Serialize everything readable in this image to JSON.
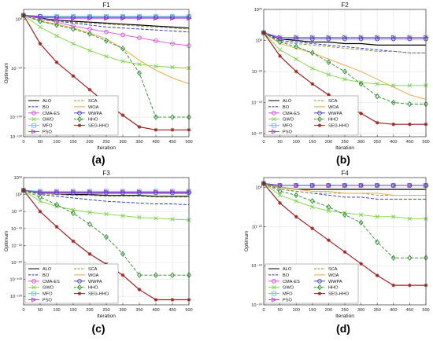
{
  "figure": {
    "captions": [
      "(a)",
      "(b)",
      "(c)",
      "(d)"
    ]
  },
  "series_styles": [
    {
      "name": "ALO",
      "color": "#000000",
      "dash": "solid",
      "marker": "none"
    },
    {
      "name": "BO",
      "color": "#1f2fbf",
      "dash": "dash",
      "marker": "none"
    },
    {
      "name": "CMA-ES",
      "color": "#d84fd8",
      "dash": "solid",
      "marker": "circle"
    },
    {
      "name": "GWO",
      "color": "#7fd34a",
      "dash": "solid",
      "marker": "x"
    },
    {
      "name": "MFO",
      "color": "#5fc8e8",
      "dash": "solid",
      "marker": "square"
    },
    {
      "name": "PSO",
      "color": "#b23fe0",
      "dash": "solid",
      "marker": "triangle"
    },
    {
      "name": "SCA",
      "color": "#8c8c3c",
      "dash": "dash",
      "marker": "none"
    },
    {
      "name": "WOA",
      "color": "#e6a53a",
      "dash": "solid",
      "marker": "none"
    },
    {
      "name": "WWPA",
      "color": "#4a4ab8",
      "dash": "solid",
      "marker": "circle"
    },
    {
      "name": "HHO",
      "color": "#2a8c2a",
      "dash": "dash",
      "marker": "diamond"
    },
    {
      "name": "SEG-HHO",
      "color": "#a02020",
      "dash": "solid",
      "marker": "star"
    }
  ],
  "chart_data": [
    {
      "type": "line",
      "title": "F1",
      "xlabel": "Iteration",
      "ylabel": "Optimum",
      "yscale": "log",
      "xlim": [
        0,
        500
      ],
      "ylim_exp": [
        -120,
        10
      ],
      "xticks": [
        0,
        50,
        100,
        150,
        200,
        250,
        300,
        350,
        400,
        450,
        500
      ],
      "ytick_labels": [
        "10⁰",
        "10⁻⁵⁰",
        "10⁻¹⁰⁰",
        "10⁻¹²⁰"
      ],
      "ytick_exps": [
        0,
        -50,
        -100,
        -120
      ],
      "grid": true,
      "legend": "bottom-left",
      "x": [
        0,
        50,
        100,
        150,
        200,
        250,
        300,
        350,
        400,
        450,
        500
      ],
      "series": [
        {
          "name": "ALO",
          "log10_values": [
            4,
            1,
            -1,
            -2,
            -3,
            -4,
            -5,
            -6,
            -7,
            -8,
            -9
          ]
        },
        {
          "name": "BO",
          "log10_values": [
            4,
            2,
            -2,
            -4,
            -6,
            -8,
            -9,
            -10,
            -11,
            -12,
            -13
          ]
        },
        {
          "name": "CMA-ES",
          "log10_values": [
            4,
            1,
            -3,
            -7,
            -10,
            -13,
            -16,
            -19,
            -22,
            -25,
            -27
          ]
        },
        {
          "name": "GWO",
          "log10_values": [
            4,
            -8,
            -17,
            -25,
            -32,
            -38,
            -43,
            -46,
            -48,
            -49,
            -50
          ]
        },
        {
          "name": "MFO",
          "log10_values": [
            4,
            3,
            3,
            3,
            3,
            3,
            3,
            3,
            3,
            3,
            3
          ]
        },
        {
          "name": "PSO",
          "log10_values": [
            4,
            2,
            1,
            1,
            1,
            1,
            1,
            1,
            1,
            1,
            1
          ]
        },
        {
          "name": "SCA",
          "log10_values": [
            4,
            -1,
            -2,
            -3,
            -4,
            -5,
            -6,
            -7,
            -8,
            -9,
            -10
          ]
        },
        {
          "name": "WOA",
          "log10_values": [
            4,
            -2,
            -5,
            -9,
            -14,
            -20,
            -30,
            -42,
            -52,
            -60,
            -66
          ]
        },
        {
          "name": "WWPA",
          "log10_values": [
            4,
            3,
            2,
            2,
            2,
            2,
            2,
            2,
            2,
            2,
            2
          ]
        },
        {
          "name": "HHO",
          "log10_values": [
            4,
            -2,
            -6,
            -10,
            -15,
            -22,
            -30,
            -55,
            -100,
            -100,
            -100
          ]
        },
        {
          "name": "SEG-HHO",
          "log10_values": [
            4,
            -25,
            -44,
            -58,
            -72,
            -86,
            -98,
            -110,
            -113,
            -113,
            -113
          ]
        }
      ]
    },
    {
      "type": "line",
      "title": "F2",
      "xlabel": "Iteration",
      "ylabel": "",
      "yscale": "log",
      "xlim": [
        0,
        500
      ],
      "ylim_exp": [
        -62,
        20
      ],
      "xticks": [
        0,
        50,
        100,
        150,
        200,
        250,
        300,
        350,
        400,
        450,
        500
      ],
      "ytick_labels": [
        "10²⁰",
        "10⁰",
        "10⁻²⁰",
        "10⁻⁴⁰",
        "10⁻⁶⁰"
      ],
      "ytick_exps": [
        20,
        0,
        -20,
        -40,
        -60
      ],
      "grid": true,
      "legend": "bottom-left",
      "x": [
        0,
        50,
        100,
        150,
        200,
        250,
        300,
        350,
        400,
        450,
        500
      ],
      "series": [
        {
          "name": "ALO",
          "log10_values": [
            5,
            1,
            0,
            -1,
            -1,
            -2,
            -2,
            -3,
            -3,
            -3,
            -3
          ]
        },
        {
          "name": "BO",
          "log10_values": [
            5,
            0,
            -1,
            -2,
            -3,
            -4,
            -5,
            -6,
            -7,
            -8,
            -8
          ]
        },
        {
          "name": "CMA-ES",
          "log10_values": [
            5,
            1,
            1,
            1,
            1,
            1,
            1,
            1,
            1,
            1,
            1
          ]
        },
        {
          "name": "GWO",
          "log10_values": [
            5,
            -6,
            -12,
            -18,
            -22,
            -25,
            -27,
            -28,
            -29,
            -29,
            -29
          ]
        },
        {
          "name": "MFO",
          "log10_values": [
            5,
            2,
            2,
            2,
            2,
            2,
            2,
            2,
            2,
            2,
            2
          ]
        },
        {
          "name": "PSO",
          "log10_values": [
            5,
            2,
            2,
            2,
            2,
            2,
            2,
            2,
            2,
            2,
            2
          ]
        },
        {
          "name": "SCA",
          "log10_values": [
            5,
            -1,
            -2,
            -3,
            -4,
            -5,
            -6,
            -7,
            -7,
            -8,
            -8
          ]
        },
        {
          "name": "WOA",
          "log10_values": [
            5,
            -2,
            -5,
            -8,
            -12,
            -16,
            -20,
            -25,
            -30,
            -35,
            -38
          ]
        },
        {
          "name": "WWPA",
          "log10_values": [
            5,
            1,
            1,
            1,
            1,
            1,
            1,
            1,
            1,
            1,
            1
          ]
        },
        {
          "name": "HHO",
          "log10_values": [
            5,
            -1,
            -4,
            -8,
            -14,
            -20,
            -28,
            -36,
            -40,
            -41,
            -41
          ]
        },
        {
          "name": "SEG-HHO",
          "log10_values": [
            5,
            -10,
            -20,
            -28,
            -35,
            -41,
            -47,
            -53,
            -54,
            -54,
            -54
          ]
        }
      ]
    },
    {
      "type": "line",
      "title": "F3",
      "xlabel": "Iteration",
      "ylabel": "Optimum",
      "yscale": "log",
      "xlim": [
        0,
        500
      ],
      "ylim_exp": [
        -130,
        20
      ],
      "xticks": [
        0,
        50,
        100,
        150,
        200,
        250,
        300,
        350,
        400,
        450,
        500
      ],
      "ytick_labels": [
        "10²⁰",
        "10⁰",
        "10⁻²⁰",
        "10⁻⁴⁰",
        "10⁻⁶⁰",
        "10⁻⁸⁰",
        "10⁻¹⁰⁰",
        "10⁻¹²⁰"
      ],
      "ytick_exps": [
        20,
        0,
        -20,
        -40,
        -60,
        -80,
        -100,
        -120
      ],
      "grid": true,
      "legend": "bottom-left",
      "x": [
        0,
        50,
        100,
        150,
        200,
        250,
        300,
        350,
        400,
        450,
        500
      ],
      "series": [
        {
          "name": "ALO",
          "log10_values": [
            5,
            2,
            1,
            0,
            0,
            -1,
            -1,
            -1,
            -2,
            -2,
            -2
          ]
        },
        {
          "name": "BO",
          "log10_values": [
            5,
            0,
            -2,
            -4,
            -6,
            -8,
            -9,
            -10,
            -11,
            -11,
            -12
          ]
        },
        {
          "name": "CMA-ES",
          "log10_values": [
            5,
            3,
            3,
            3,
            3,
            3,
            3,
            3,
            3,
            3,
            3
          ]
        },
        {
          "name": "GWO",
          "log10_values": [
            5,
            -8,
            -14,
            -18,
            -21,
            -23,
            -25,
            -27,
            -28,
            -29,
            -30
          ]
        },
        {
          "name": "MFO",
          "log10_values": [
            5,
            4,
            4,
            4,
            4,
            4,
            4,
            4,
            4,
            4,
            4
          ]
        },
        {
          "name": "PSO",
          "log10_values": [
            5,
            3,
            3,
            3,
            3,
            3,
            3,
            3,
            3,
            3,
            3
          ]
        },
        {
          "name": "SCA",
          "log10_values": [
            5,
            1,
            0,
            -1,
            -1,
            -2,
            -2,
            -2,
            -3,
            -3,
            -3
          ]
        },
        {
          "name": "WOA",
          "log10_values": [
            5,
            2,
            1,
            1,
            1,
            1,
            1,
            1,
            1,
            1,
            1
          ]
        },
        {
          "name": "WWPA",
          "log10_values": [
            5,
            2,
            2,
            2,
            2,
            2,
            2,
            2,
            2,
            2,
            2
          ]
        },
        {
          "name": "HHO",
          "log10_values": [
            5,
            -3,
            -12,
            -22,
            -35,
            -50,
            -70,
            -95,
            -95,
            -95,
            -95
          ]
        },
        {
          "name": "SEG-HHO",
          "log10_values": [
            5,
            -20,
            -38,
            -55,
            -70,
            -82,
            -95,
            -112,
            -124,
            -124,
            -124
          ]
        }
      ]
    },
    {
      "type": "line",
      "title": "F4",
      "xlabel": "Iteration",
      "ylabel": "Optimum",
      "yscale": "log",
      "xlim": [
        0,
        500
      ],
      "ylim_exp": [
        -60,
        5
      ],
      "xticks": [
        0,
        50,
        100,
        150,
        200,
        250,
        300,
        350,
        400,
        450,
        500
      ],
      "ytick_labels": [
        "10⁰",
        "10⁻²⁰",
        "10⁻⁴⁰",
        "10⁻⁶⁰"
      ],
      "ytick_exps": [
        0,
        -20,
        -40,
        -60
      ],
      "grid": true,
      "legend": "bottom-left",
      "x": [
        0,
        50,
        100,
        150,
        200,
        250,
        300,
        350,
        400,
        450,
        500
      ],
      "series": [
        {
          "name": "ALO",
          "log10_values": [
            2,
            0,
            -1,
            -1,
            -1,
            -1,
            -1,
            -1,
            -1,
            -1,
            -1
          ]
        },
        {
          "name": "BO",
          "log10_values": [
            2,
            -1,
            -2,
            -3,
            -4,
            -5,
            -5,
            -6,
            -6,
            -6,
            -6
          ]
        },
        {
          "name": "CMA-ES",
          "log10_values": [
            2,
            1,
            1,
            1,
            1,
            1,
            1,
            1,
            1,
            1,
            1
          ]
        },
        {
          "name": "GWO",
          "log10_values": [
            2,
            -4,
            -7,
            -10,
            -12,
            -13,
            -14,
            -15,
            -15,
            -16,
            -16
          ]
        },
        {
          "name": "MFO",
          "log10_values": [
            2,
            1,
            1,
            1,
            1,
            1,
            1,
            1,
            1,
            1,
            1
          ]
        },
        {
          "name": "PSO",
          "log10_values": [
            2,
            1,
            1,
            1,
            1,
            1,
            1,
            1,
            1,
            1,
            1
          ]
        },
        {
          "name": "SCA",
          "log10_values": [
            2,
            -1,
            -2,
            -3,
            -3,
            -3,
            -3,
            -4,
            -4,
            -4,
            -4
          ]
        },
        {
          "name": "WOA",
          "log10_values": [
            2,
            0,
            -1,
            -2,
            -2,
            -3,
            -3,
            -3,
            -4,
            -4,
            -4
          ]
        },
        {
          "name": "WWPA",
          "log10_values": [
            2,
            1,
            1,
            1,
            1,
            1,
            1,
            1,
            1,
            1,
            1
          ]
        },
        {
          "name": "HHO",
          "log10_values": [
            2,
            -2,
            -4,
            -7,
            -10,
            -14,
            -18,
            -28,
            -36,
            -36,
            -36
          ]
        },
        {
          "name": "SEG-HHO",
          "log10_values": [
            2,
            -8,
            -15,
            -21,
            -27,
            -33,
            -39,
            -45,
            -50,
            -50,
            -50
          ]
        }
      ]
    }
  ]
}
